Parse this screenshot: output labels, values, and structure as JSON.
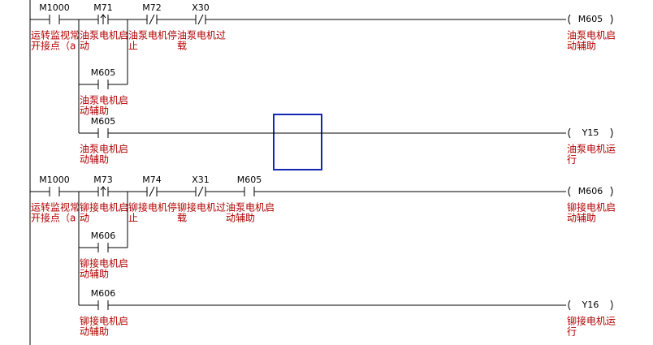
{
  "rungs": [
    {
      "contacts": [
        {
          "device": "M1000",
          "comment": [
            "运转监视常",
            "开接点（a"
          ]
        },
        {
          "device": "M71",
          "comment": [
            "油泵电机启",
            "动"
          ]
        },
        {
          "device": "M72",
          "comment": [
            "油泵电机停",
            "止"
          ]
        },
        {
          "device": "X30",
          "comment": [
            "油泵电机过",
            "载"
          ]
        }
      ],
      "coil": {
        "device": "M605",
        "comment": [
          "油泵电机启",
          "动辅助"
        ]
      },
      "branches": [
        {
          "device": "M605",
          "comment": [
            "油泵电机启",
            "动辅助"
          ]
        },
        {
          "device": "M605",
          "comment": [
            "油泵电机启",
            "动辅助"
          ],
          "coil": {
            "device": "Y15",
            "comment": [
              "油泵电机运",
              "行"
            ]
          }
        }
      ]
    },
    {
      "contacts": [
        {
          "device": "M1000",
          "comment": [
            "运转监视常",
            "开接点（a"
          ]
        },
        {
          "device": "M73",
          "comment": [
            "铆接电机启",
            "动"
          ]
        },
        {
          "device": "M74",
          "comment": [
            "铆接电机停",
            "止"
          ]
        },
        {
          "device": "X31",
          "comment": [
            "铆接电机过",
            "载"
          ]
        },
        {
          "device": "M605",
          "comment": [
            "油泵电机启",
            "动辅助"
          ]
        }
      ],
      "coil": {
        "device": "M606",
        "comment": [
          "铆接电机启",
          "动辅助"
        ]
      },
      "branches": [
        {
          "device": "M606",
          "comment": [
            "铆接电机启",
            "动辅助"
          ]
        },
        {
          "device": "M606",
          "comment": [
            "铆接电机启",
            "动辅助"
          ],
          "coil": {
            "device": "Y16",
            "comment": [
              "铆接电机运",
              "行"
            ]
          }
        }
      ]
    }
  ]
}
